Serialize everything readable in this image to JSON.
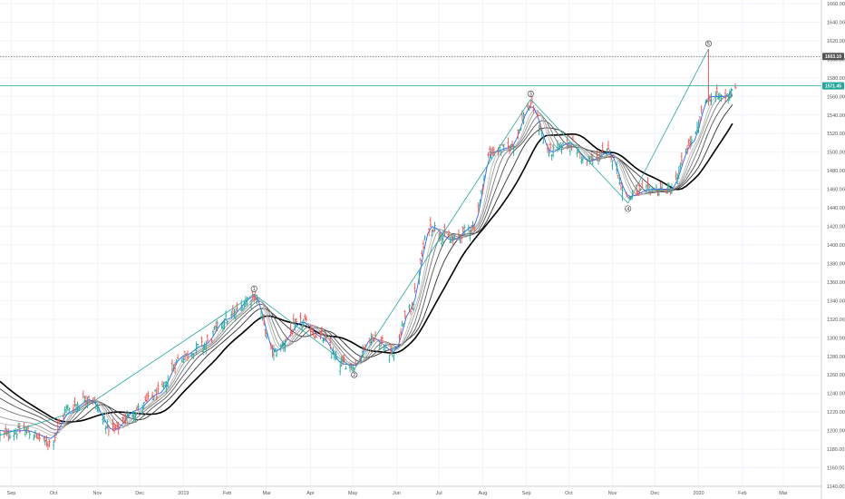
{
  "chart_data": {
    "type": "candlestick",
    "y_ticks": [
      "1660.00",
      "1640.00",
      "1620.00",
      "1600.00",
      "1580.00",
      "1560.00",
      "1540.00",
      "1520.00",
      "1500.00",
      "1480.00",
      "1460.00",
      "1440.00",
      "1420.00",
      "1400.00",
      "1380.00",
      "1360.00",
      "1340.00",
      "1320.00",
      "1300.00",
      "1280.00",
      "1260.00",
      "1240.00",
      "1220.00",
      "1200.00",
      "1180.00",
      "1160.00",
      "1140.00"
    ],
    "y_range": [
      1140,
      1660
    ],
    "x_labels": [
      "Sep",
      "Oct",
      "Nov",
      "Dec",
      "2019",
      "Feb",
      "Mar",
      "Apr",
      "May",
      "Jun",
      "Jul",
      "Aug",
      "Sep",
      "Oct",
      "Nov",
      "Dec",
      "2020",
      "Feb",
      "Mar"
    ],
    "x_label_dates": [
      "2018-09-01",
      "2018-10-01",
      "2018-11-01",
      "2018-12-01",
      "2019-01-01",
      "2019-02-01",
      "2019-03-01",
      "2019-04-01",
      "2019-05-01",
      "2019-06-01",
      "2019-07-01",
      "2019-08-01",
      "2019-09-01",
      "2019-10-01",
      "2019-11-01",
      "2019-12-01",
      "2020-01-01",
      "2020-02-01",
      "2020-03-01"
    ],
    "x_range": [
      "2018-08-24",
      "2020-03-28"
    ],
    "price_levels": [
      {
        "label": "1603.10",
        "value": 1603.1,
        "color": "#555555",
        "style": "dotted"
      },
      {
        "label": "1571.45",
        "value": 1571.45,
        "color": "#26a69a",
        "style": "solid"
      }
    ],
    "wave_labels": [
      {
        "label": "1",
        "date": "2019-02-20",
        "price": 1347
      },
      {
        "label": "2",
        "date": "2019-05-02",
        "price": 1266
      },
      {
        "label": "3",
        "date": "2019-09-04",
        "price": 1557
      },
      {
        "label": "4",
        "date": "2019-11-12",
        "price": 1445
      },
      {
        "label": "5",
        "date": "2020-01-08",
        "price": 1611
      }
    ],
    "key_prices": [
      {
        "date": "2018-08-24",
        "price": 1195
      },
      {
        "date": "2018-09-10",
        "price": 1200
      },
      {
        "date": "2018-09-28",
        "price": 1187
      },
      {
        "date": "2018-10-12",
        "price": 1225
      },
      {
        "date": "2018-10-26",
        "price": 1236
      },
      {
        "date": "2018-11-12",
        "price": 1200
      },
      {
        "date": "2018-11-28",
        "price": 1222
      },
      {
        "date": "2018-12-14",
        "price": 1240
      },
      {
        "date": "2018-12-31",
        "price": 1280
      },
      {
        "date": "2019-01-15",
        "price": 1292
      },
      {
        "date": "2019-01-31",
        "price": 1320
      },
      {
        "date": "2019-02-20",
        "price": 1345
      },
      {
        "date": "2019-03-06",
        "price": 1285
      },
      {
        "date": "2019-03-26",
        "price": 1317
      },
      {
        "date": "2019-04-09",
        "price": 1300
      },
      {
        "date": "2019-04-23",
        "price": 1272
      },
      {
        "date": "2019-05-02",
        "price": 1270
      },
      {
        "date": "2019-05-14",
        "price": 1300
      },
      {
        "date": "2019-05-30",
        "price": 1285
      },
      {
        "date": "2019-06-10",
        "price": 1330
      },
      {
        "date": "2019-06-25",
        "price": 1420
      },
      {
        "date": "2019-07-10",
        "price": 1405
      },
      {
        "date": "2019-07-25",
        "price": 1420
      },
      {
        "date": "2019-08-07",
        "price": 1500
      },
      {
        "date": "2019-08-20",
        "price": 1505
      },
      {
        "date": "2019-09-04",
        "price": 1550
      },
      {
        "date": "2019-09-18",
        "price": 1500
      },
      {
        "date": "2019-10-01",
        "price": 1510
      },
      {
        "date": "2019-10-15",
        "price": 1490
      },
      {
        "date": "2019-10-29",
        "price": 1500
      },
      {
        "date": "2019-11-12",
        "price": 1452
      },
      {
        "date": "2019-11-28",
        "price": 1460
      },
      {
        "date": "2019-12-12",
        "price": 1460
      },
      {
        "date": "2019-12-27",
        "price": 1510
      },
      {
        "date": "2020-01-08",
        "price": 1560
      },
      {
        "date": "2020-01-20",
        "price": 1560
      },
      {
        "date": "2020-01-27",
        "price": 1572
      }
    ],
    "ma_series": [
      {
        "color": "#000000",
        "start": 1253,
        "end": 1500,
        "lag": 30
      },
      {
        "color": "#333333",
        "start": 1245,
        "end": 1520,
        "lag": 20
      },
      {
        "color": "#555555",
        "start": 1235,
        "end": 1530,
        "lag": 14
      },
      {
        "color": "#777777",
        "start": 1225,
        "end": 1537,
        "lag": 10
      },
      {
        "color": "#999999",
        "start": 1215,
        "end": 1545,
        "lag": 7
      },
      {
        "color": "#bbbbbb",
        "start": 1208,
        "end": 1552,
        "lag": 5
      },
      {
        "color": "#2962ff",
        "start": 1200,
        "end": 1565,
        "lag": 1
      }
    ],
    "colors": {
      "up": "#26a69a",
      "down": "#ef5350",
      "grid": "#f0f3fa",
      "wave_line": "#26a69a",
      "axis": "#555555"
    }
  }
}
